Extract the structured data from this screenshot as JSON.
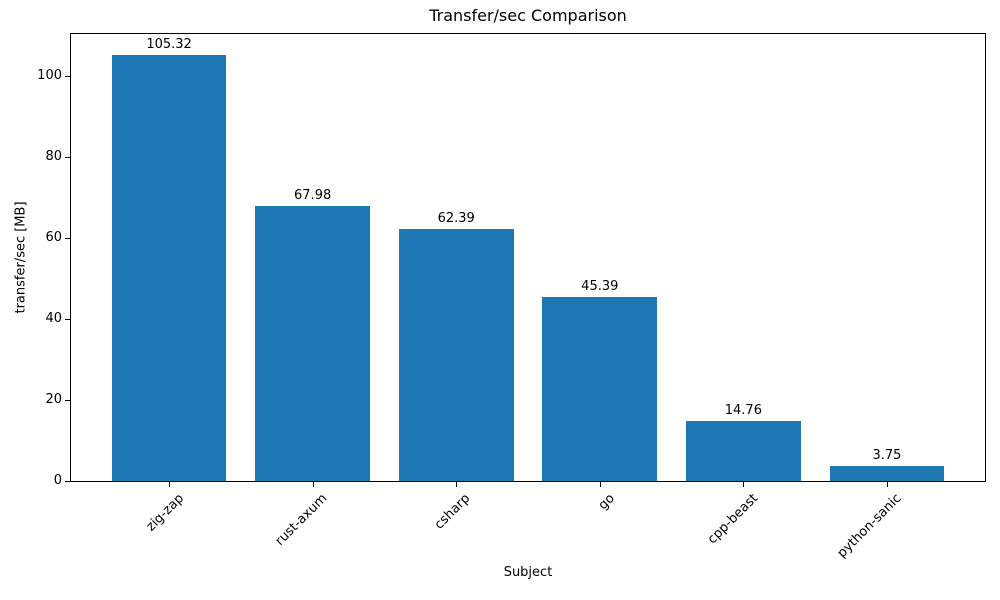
{
  "chart_data": {
    "type": "bar",
    "title": "Transfer/sec Comparison",
    "xlabel": "Subject",
    "ylabel": "transfer/sec [MB]",
    "categories": [
      "zig-zap",
      "rust-axum",
      "csharp",
      "go",
      "cpp-beast",
      "python-sanic"
    ],
    "values": [
      105.32,
      67.98,
      62.39,
      45.39,
      14.76,
      3.75
    ],
    "value_labels": [
      "105.32",
      "67.98",
      "62.39",
      "45.39",
      "14.76",
      "3.75"
    ],
    "yticks": [
      0,
      20,
      40,
      60,
      80,
      100
    ],
    "ylim": [
      0,
      111
    ],
    "bar_color": "#1f77b4",
    "axis_color": "#000000",
    "grid": "off",
    "legend": "none"
  }
}
